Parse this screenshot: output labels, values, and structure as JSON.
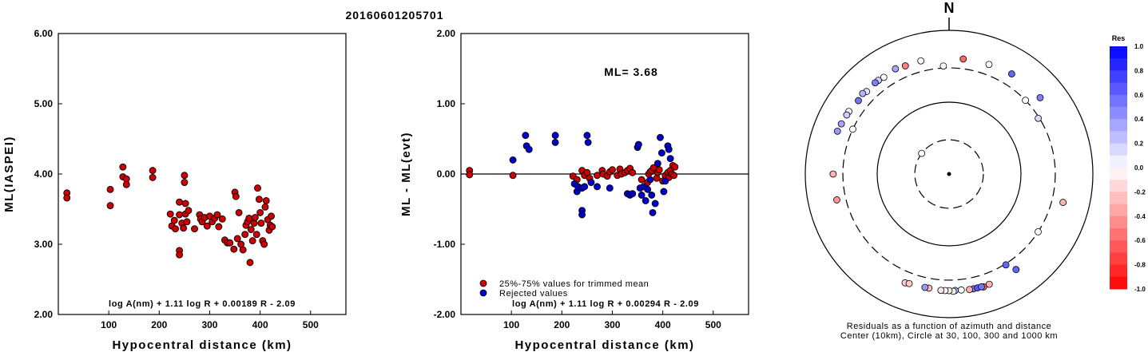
{
  "page_title": "20160601205701",
  "chart_data": [
    {
      "type": "scatter",
      "ylabel": "ML(IASPEI)",
      "xlabel": "Hypocentral distance (km)",
      "xlim": [
        0,
        570
      ],
      "ylim": [
        2.0,
        6.0
      ],
      "xticks": [
        100,
        200,
        300,
        400,
        500
      ],
      "xtick_labels": [
        "100",
        "200",
        "300",
        "400",
        "500"
      ],
      "yticks": [
        2.0,
        3.0,
        4.0,
        5.0,
        6.0
      ],
      "ytick_labels": [
        "2.00",
        "3.00",
        "4.00",
        "5.00",
        "6.00"
      ],
      "formula": "log A(nm) + 1.11 log R + 0.00189 R - 2.09",
      "point_color": "#cc0000",
      "points": [
        [
          17,
          3.73
        ],
        [
          17,
          3.66
        ],
        [
          103,
          3.78
        ],
        [
          103,
          3.55
        ],
        [
          128,
          4.1
        ],
        [
          128,
          3.96
        ],
        [
          135,
          3.93
        ],
        [
          135,
          3.85
        ],
        [
          187,
          4.05
        ],
        [
          187,
          3.95
        ],
        [
          222,
          3.43
        ],
        [
          225,
          3.26
        ],
        [
          230,
          3.34
        ],
        [
          232,
          3.22
        ],
        [
          240,
          3.6
        ],
        [
          240,
          3.42
        ],
        [
          240,
          2.91
        ],
        [
          240,
          2.85
        ],
        [
          245,
          3.3
        ],
        [
          248,
          3.23
        ],
        [
          250,
          3.98
        ],
        [
          250,
          3.88
        ],
        [
          252,
          3.58
        ],
        [
          252,
          3.43
        ],
        [
          255,
          3.32
        ],
        [
          258,
          3.48
        ],
        [
          270,
          3.22
        ],
        [
          280,
          3.42
        ],
        [
          282,
          3.36
        ],
        [
          285,
          3.32
        ],
        [
          290,
          3.38
        ],
        [
          295,
          3.26
        ],
        [
          300,
          3.4
        ],
        [
          305,
          3.32
        ],
        [
          310,
          3.37
        ],
        [
          315,
          3.42
        ],
        [
          318,
          3.25
        ],
        [
          325,
          3.36
        ],
        [
          330,
          3.06
        ],
        [
          335,
          3.02
        ],
        [
          340,
          3.02
        ],
        [
          348,
          2.93
        ],
        [
          350,
          3.74
        ],
        [
          352,
          3.68
        ],
        [
          355,
          3.08
        ],
        [
          358,
          3.45
        ],
        [
          362,
          3.0
        ],
        [
          366,
          2.92
        ],
        [
          370,
          3.14
        ],
        [
          372,
          3.27
        ],
        [
          375,
          3.32
        ],
        [
          378,
          3.37
        ],
        [
          380,
          2.74
        ],
        [
          382,
          3.21
        ],
        [
          385,
          3.05
        ],
        [
          388,
          3.3
        ],
        [
          390,
          3.38
        ],
        [
          393,
          3.14
        ],
        [
          395,
          3.8
        ],
        [
          398,
          3.64
        ],
        [
          400,
          3.45
        ],
        [
          402,
          3.3
        ],
        [
          405,
          3.05
        ],
        [
          408,
          3.0
        ],
        [
          410,
          3.53
        ],
        [
          412,
          3.62
        ],
        [
          415,
          3.35
        ],
        [
          418,
          3.2
        ],
        [
          420,
          3.27
        ],
        [
          422,
          3.4
        ],
        [
          424,
          3.25
        ]
      ]
    },
    {
      "type": "scatter",
      "ylabel": "ML - ML(evt)",
      "xlabel": "Hypocentral distance (km)",
      "xlim": [
        0,
        570
      ],
      "ylim": [
        -2.0,
        2.0
      ],
      "xticks": [
        100,
        200,
        300,
        400,
        500
      ],
      "xtick_labels": [
        "100",
        "200",
        "300",
        "400",
        "500"
      ],
      "yticks": [
        -2.0,
        -1.0,
        0.0,
        1.0,
        2.0
      ],
      "ytick_labels": [
        "-2.00",
        "-1.00",
        "0.00",
        "1.00",
        "2.00"
      ],
      "reference_line": 0.0,
      "annotation": "ML= 3.68",
      "formula": "log A(nm) + 1.11 log R + 0.00294 R - 2.09",
      "legend": [
        {
          "label": "25%-75% values for trimmed mean",
          "color": "#cc0000"
        },
        {
          "label": "Rejected values",
          "color": "#0000cc"
        }
      ],
      "series": [
        {
          "name": "25%-75% values for trimmed mean",
          "color": "#cc0000",
          "points": [
            [
              17,
              0.05
            ],
            [
              17,
              -0.01
            ],
            [
              103,
              -0.02
            ],
            [
              222,
              -0.03
            ],
            [
              230,
              -0.08
            ],
            [
              240,
              0.05
            ],
            [
              245,
              -0.02
            ],
            [
              250,
              0.02
            ],
            [
              255,
              -0.06
            ],
            [
              270,
              -0.02
            ],
            [
              280,
              0.05
            ],
            [
              282,
              0.0
            ],
            [
              290,
              -0.03
            ],
            [
              295,
              0.03
            ],
            [
              300,
              0.06
            ],
            [
              310,
              -0.02
            ],
            [
              315,
              0.07
            ],
            [
              318,
              0.0
            ],
            [
              325,
              0.02
            ],
            [
              330,
              0.05
            ],
            [
              335,
              0.08
            ],
            [
              340,
              0.02
            ],
            [
              358,
              -0.08
            ],
            [
              370,
              -0.12
            ],
            [
              372,
              0.0
            ],
            [
              375,
              0.03
            ],
            [
              378,
              0.05
            ],
            [
              382,
              0.09
            ],
            [
              388,
              -0.06
            ],
            [
              390,
              0.02
            ],
            [
              393,
              0.06
            ],
            [
              400,
              -0.1
            ],
            [
              405,
              -0.02
            ],
            [
              410,
              0.02
            ],
            [
              412,
              -0.05
            ],
            [
              415,
              0.05
            ],
            [
              418,
              0.0
            ],
            [
              420,
              0.12
            ],
            [
              422,
              -0.02
            ],
            [
              424,
              0.1
            ]
          ]
        },
        {
          "name": "Rejected values",
          "color": "#0000cc",
          "points": [
            [
              103,
              0.2
            ],
            [
              128,
              0.55
            ],
            [
              130,
              0.4
            ],
            [
              135,
              0.35
            ],
            [
              187,
              0.55
            ],
            [
              187,
              0.45
            ],
            [
              225,
              -0.14
            ],
            [
              230,
              -0.25
            ],
            [
              232,
              -0.18
            ],
            [
              240,
              -0.2
            ],
            [
              240,
              -0.52
            ],
            [
              240,
              -0.58
            ],
            [
              245,
              -0.18
            ],
            [
              250,
              0.55
            ],
            [
              252,
              0.45
            ],
            [
              258,
              -0.12
            ],
            [
              270,
              -0.18
            ],
            [
              295,
              -0.2
            ],
            [
              330,
              -0.28
            ],
            [
              335,
              -0.3
            ],
            [
              340,
              -0.28
            ],
            [
              350,
              0.38
            ],
            [
              352,
              0.42
            ],
            [
              355,
              -0.2
            ],
            [
              358,
              -0.3
            ],
            [
              362,
              -0.18
            ],
            [
              366,
              -0.38
            ],
            [
              370,
              -0.22
            ],
            [
              375,
              -0.08
            ],
            [
              378,
              -0.3
            ],
            [
              380,
              -0.55
            ],
            [
              385,
              -0.42
            ],
            [
              390,
              0.15
            ],
            [
              395,
              0.52
            ],
            [
              398,
              0.3
            ],
            [
              402,
              -0.25
            ],
            [
              405,
              -0.1
            ],
            [
              410,
              0.4
            ],
            [
              412,
              0.35
            ],
            [
              415,
              0.22
            ]
          ]
        }
      ]
    },
    {
      "type": "scatter",
      "north_label": "N",
      "caption_line1": "Residuals as a function of azimuth and distance",
      "caption_line2": "Center (10km), Circle at 30, 100, 300 and 1000 km",
      "colorbar_title": "Res",
      "colorbar_labels": [
        "1.0",
        "0.8",
        "0.6",
        "0.4",
        "0.2",
        "0.0",
        "-0.2",
        "-0.4",
        "-0.6",
        "-0.8",
        "-1.0"
      ],
      "colorbar_values": [
        1.0,
        0.8,
        0.6,
        0.4,
        0.2,
        0.0,
        -0.2,
        -0.4,
        -0.6,
        -0.8,
        -1.0
      ],
      "rings": [
        {
          "distance_km": 30,
          "style": "dashed"
        },
        {
          "distance_km": 100,
          "style": "solid"
        },
        {
          "distance_km": 300,
          "style": "dashed"
        },
        {
          "distance_km": 1000,
          "style": "solid"
        }
      ],
      "stations": [
        {
          "azimuth": 357,
          "distance": 320,
          "res": 0.0
        },
        {
          "azimuth": 346,
          "distance": 420,
          "res": 0.0
        },
        {
          "azimuth": 7,
          "distance": 410,
          "res": -0.6
        },
        {
          "azimuth": 338,
          "distance": 420,
          "res": -0.5
        },
        {
          "azimuth": 333,
          "distance": 440,
          "res": 0.35
        },
        {
          "azimuth": 326,
          "distance": 420,
          "res": 0.0
        },
        {
          "azimuth": 323,
          "distance": 430,
          "res": 0.2
        },
        {
          "azimuth": 321,
          "distance": 430,
          "res": 0.5
        },
        {
          "azimuth": 315,
          "distance": 420,
          "res": 0.1
        },
        {
          "azimuth": 313,
          "distance": 440,
          "res": 0.3
        },
        {
          "azimuth": 309,
          "distance": 420,
          "res": 0.55
        },
        {
          "azimuth": 302,
          "distance": 440,
          "res": 0.0
        },
        {
          "azimuth": 300,
          "distance": 440,
          "res": 0.2
        },
        {
          "azimuth": 295,
          "distance": 450,
          "res": 0.35
        },
        {
          "azimuth": 291,
          "distance": 460,
          "res": 0.4
        },
        {
          "azimuth": 295,
          "distance": 300,
          "res": 0.0
        },
        {
          "azimuth": 20,
          "distance": 420,
          "res": 0.0
        },
        {
          "azimuth": 32,
          "distance": 440,
          "res": 0.6
        },
        {
          "azimuth": 46,
          "distance": 300,
          "res": 0.0
        },
        {
          "azimuth": 50,
          "distance": 450,
          "res": 0.5
        },
        {
          "azimuth": 58,
          "distance": 290,
          "res": 0.15
        },
        {
          "azimuth": 307,
          "distance": 30,
          "res": 0.0
        },
        {
          "azimuth": 270,
          "distance": 410,
          "res": -0.3
        },
        {
          "azimuth": 257,
          "distance": 400,
          "res": -0.4
        },
        {
          "azimuth": 104,
          "distance": 430,
          "res": -0.3
        },
        {
          "azimuth": 123,
          "distance": 300,
          "res": 0.0
        },
        {
          "azimuth": 148,
          "distance": 310,
          "res": 0.6
        },
        {
          "azimuth": 145,
          "distance": 420,
          "res": 0.6
        },
        {
          "azimuth": 160,
          "distance": 430,
          "res": -0.3
        },
        {
          "azimuth": 163,
          "distance": 440,
          "res": -0.6
        },
        {
          "azimuth": 168,
          "distance": 430,
          "res": 0.5
        },
        {
          "azimuth": 174,
          "distance": 420,
          "res": 0.0
        },
        {
          "azimuth": 177,
          "distance": 420,
          "res": 0.3
        },
        {
          "azimuth": 178,
          "distance": 430,
          "res": 0.0
        },
        {
          "azimuth": 180,
          "distance": 420,
          "res": -0.1
        },
        {
          "azimuth": 182,
          "distance": 420,
          "res": 0.0
        },
        {
          "azimuth": 184,
          "distance": 420,
          "res": -0.1
        },
        {
          "azimuth": 190,
          "distance": 410,
          "res": -0.25
        },
        {
          "azimuth": 192,
          "distance": 410,
          "res": 0.4
        },
        {
          "azimuth": 170,
          "distance": 430,
          "res": -0.3
        },
        {
          "azimuth": 166,
          "distance": 430,
          "res": 0.65
        },
        {
          "azimuth": 164,
          "distance": 430,
          "res": 0.55
        },
        {
          "azimuth": 202,
          "distance": 430,
          "res": -0.2
        },
        {
          "azimuth": 200,
          "distance": 420,
          "res": -0.2
        }
      ]
    }
  ]
}
